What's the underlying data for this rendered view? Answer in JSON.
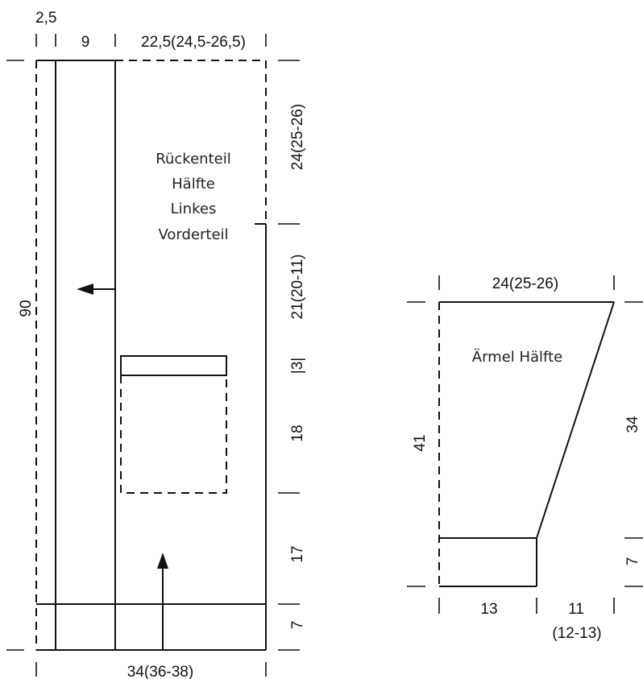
{
  "colors": {
    "line": "#111111",
    "background": "#ffffff"
  },
  "body_panel": {
    "label_lines": [
      "Rückenteil",
      "Hälfte",
      "Linkes",
      "Vorderteil"
    ],
    "dims": {
      "top_left": "2,5",
      "top_mid": "9",
      "top_right": "22,5(24,5-26,5)",
      "left_height": "90",
      "right_1": "24(25-26)",
      "right_2": "21(20-11)",
      "right_3": "|3|",
      "right_4": "18",
      "right_5": "17",
      "right_6": "7",
      "bottom": "34(36-38)"
    }
  },
  "sleeve_panel": {
    "label": "Ärmel Hälfte",
    "dims": {
      "top": "24(25-26)",
      "left_height": "41",
      "right_height": "34",
      "right_cuff": "7",
      "bottom_left": "13",
      "bottom_right_1": "11",
      "bottom_right_2": "(12-13)"
    }
  }
}
